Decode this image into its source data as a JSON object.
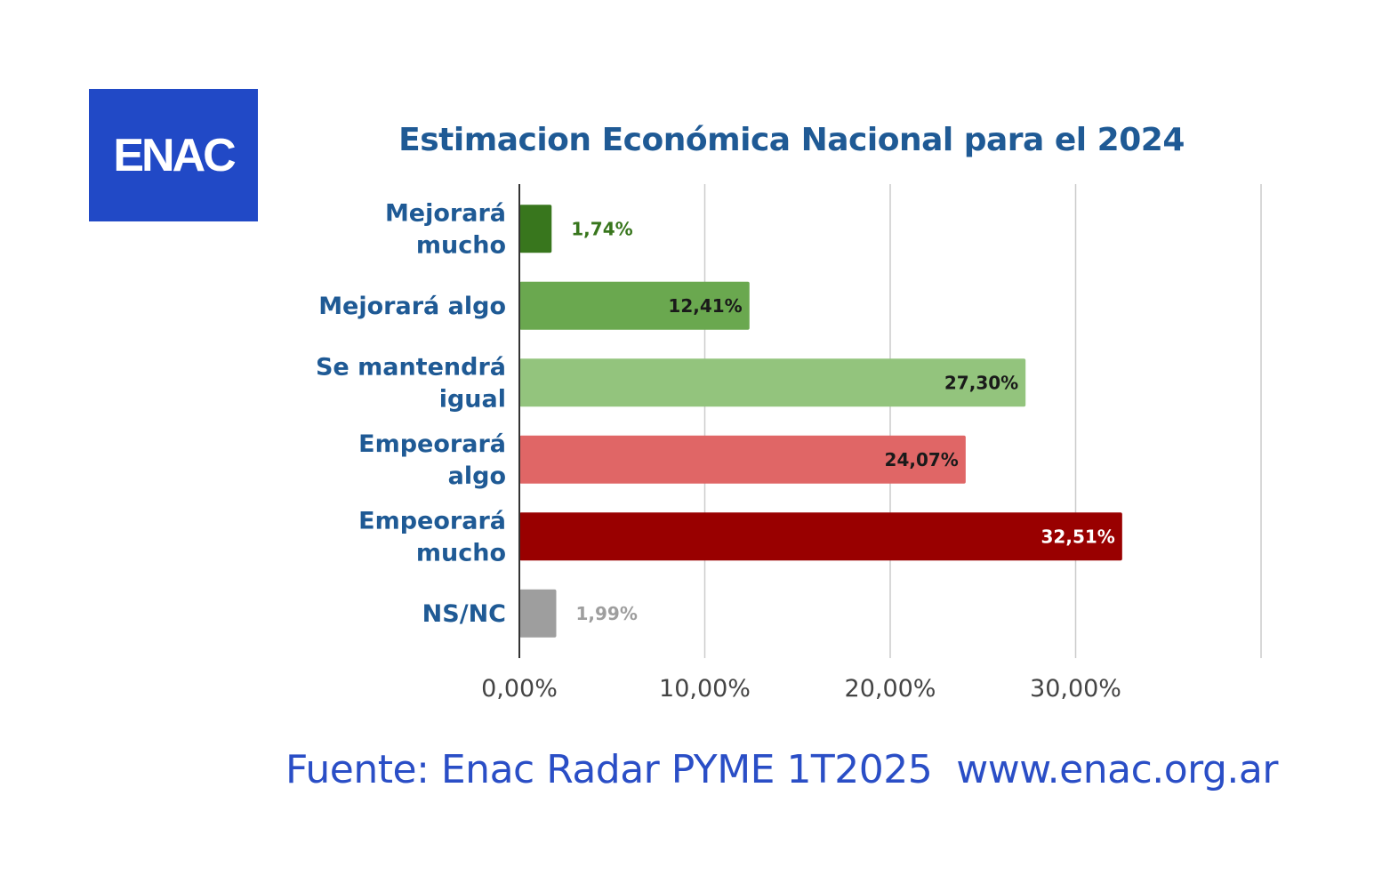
{
  "logo": {
    "text": "ENAC",
    "color": "#2149c6"
  },
  "footer": {
    "source": "Fuente: Enac Radar PYME 1T2025  www.enac.org.ar"
  },
  "chart_data": {
    "type": "bar",
    "orientation": "horizontal",
    "title": "Estimacion Económica Nacional para el 2024",
    "categories": [
      [
        "Mejorará",
        "mucho"
      ],
      [
        "Mejorará algo"
      ],
      [
        "Se mantendrá",
        "igual"
      ],
      [
        "Empeorará",
        "algo"
      ],
      [
        "Empeorará",
        "mucho"
      ],
      [
        "NS/NC"
      ]
    ],
    "values": [
      1.74,
      12.41,
      27.3,
      24.07,
      32.51,
      1.99
    ],
    "value_labels": [
      "1,74%",
      "12,41%",
      "27,30%",
      "24,07%",
      "32,51%",
      "1,99%"
    ],
    "bar_colors": [
      "#38761d",
      "#6aa84f",
      "#93c47d",
      "#e06666",
      "#990000",
      "#9e9e9e"
    ],
    "label_colors": [
      "#38761d",
      "#1a1a1a",
      "#1a1a1a",
      "#1a1a1a",
      "#ffffff",
      "#9e9e9e"
    ],
    "label_inside": [
      false,
      true,
      true,
      true,
      true,
      false
    ],
    "xlim": [
      0,
      40
    ],
    "xticks": [
      0,
      10,
      20,
      30,
      40
    ],
    "xtick_labels": [
      "0,00%",
      "10,00%",
      "20,00%",
      "30,00%",
      ""
    ],
    "grid": true
  }
}
